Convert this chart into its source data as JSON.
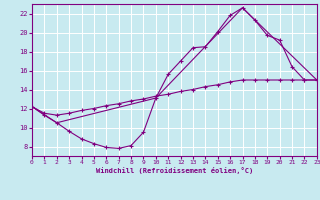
{
  "xlabel": "Windchill (Refroidissement éolien,°C)",
  "background_color": "#c8eaf0",
  "line_color": "#800080",
  "grid_color": "#ffffff",
  "xmin": 0,
  "xmax": 23,
  "ymin": 7,
  "ymax": 23,
  "yticks": [
    8,
    10,
    12,
    14,
    16,
    18,
    20,
    22
  ],
  "xticks": [
    0,
    1,
    2,
    3,
    4,
    5,
    6,
    7,
    8,
    9,
    10,
    11,
    12,
    13,
    14,
    15,
    16,
    17,
    18,
    19,
    20,
    21,
    22,
    23
  ],
  "line1_x": [
    0,
    1,
    2,
    3,
    4,
    5,
    6,
    7,
    8,
    9,
    10,
    11,
    12,
    13,
    14,
    15,
    16,
    17,
    18,
    19,
    20,
    21,
    22,
    23
  ],
  "line1_y": [
    12.2,
    11.3,
    10.5,
    9.6,
    8.8,
    8.3,
    7.9,
    7.8,
    8.1,
    9.5,
    13.1,
    15.6,
    17.0,
    18.4,
    18.5,
    20.1,
    21.8,
    22.6,
    21.3,
    19.7,
    19.2,
    16.4,
    15.0,
    15.0
  ],
  "line2_x": [
    0,
    1,
    2,
    3,
    4,
    5,
    6,
    7,
    8,
    9,
    10,
    11,
    12,
    13,
    14,
    15,
    16,
    17,
    18,
    19,
    20,
    21,
    22,
    23
  ],
  "line2_y": [
    12.2,
    11.5,
    11.3,
    11.5,
    11.8,
    12.0,
    12.3,
    12.5,
    12.8,
    13.0,
    13.3,
    13.5,
    13.8,
    14.0,
    14.3,
    14.5,
    14.8,
    15.0,
    15.0,
    15.0,
    15.0,
    15.0,
    15.0,
    15.0
  ],
  "line3_x": [
    0,
    2,
    10,
    17,
    23
  ],
  "line3_y": [
    12.2,
    10.5,
    13.1,
    22.6,
    15.0
  ]
}
